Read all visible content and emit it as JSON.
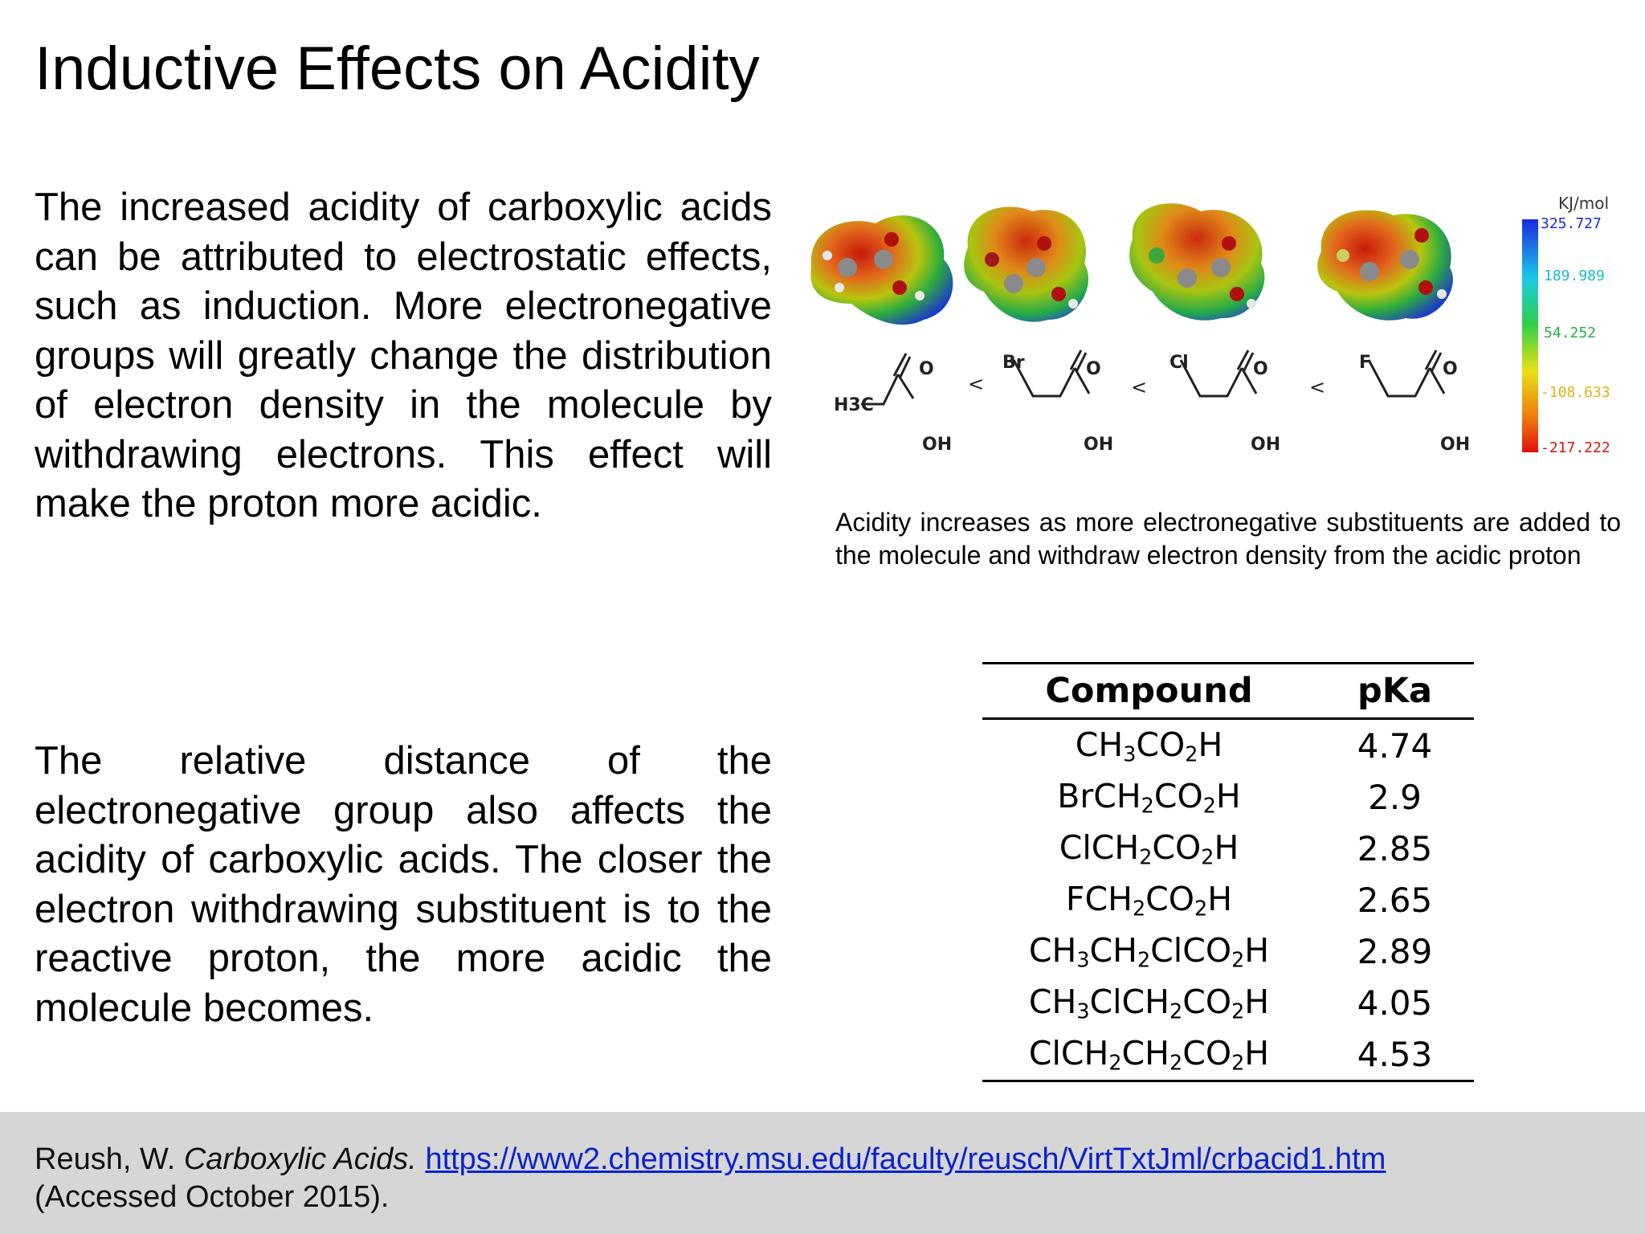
{
  "title": "Inductive Effects on Acidity",
  "paragraph1": "The increased acidity of carboxylic acids can be attributed to electrostatic effects, such as induction. More electronegative groups will greatly change the distribution of electron density in the molecule by withdrawing electrons. This effect will make the proton more acidic.",
  "paragraph2": "The relative distance of the electronegative group also affects the acidity of carboxylic acids. The closer the electron withdrawing substituent is to the reactive proton, the more acidic the molecule becomes.",
  "figure": {
    "legend_unit": "KJ/mol",
    "legend_values": [
      "325.727",
      "189.989",
      "54.252",
      "-108.633",
      "-217.222"
    ],
    "molecules": [
      {
        "substituent": "H3C",
        "group": "OH",
        "carbonyl": "O"
      },
      {
        "substituent": "Br",
        "group": "OH",
        "carbonyl": "O"
      },
      {
        "substituent": "Cl",
        "group": "OH",
        "carbonyl": "O"
      },
      {
        "substituent": "F",
        "group": "OH",
        "carbonyl": "O"
      }
    ],
    "comparator": "<",
    "caption": "Acidity increases as more electronegative substituents are added to the molecule and withdraw electron density from the acidic proton"
  },
  "table": {
    "headers": [
      "Compound",
      "pKa"
    ],
    "rows": [
      {
        "compound": "CH3CO2H",
        "pka": "4.74"
      },
      {
        "compound": "BrCH2CO2H",
        "pka": "2.9"
      },
      {
        "compound": "ClCH2CO2H",
        "pka": "2.85"
      },
      {
        "compound": "FCH2CO2H",
        "pka": "2.65"
      },
      {
        "compound": "CH3CH2ClCO2H",
        "pka": "2.89"
      },
      {
        "compound": "CH3ClCH2CO2H",
        "pka": "4.05"
      },
      {
        "compound": "ClCH2CH2CO2H",
        "pka": "4.53"
      }
    ]
  },
  "reference": {
    "author": "Reush, W.",
    "work": "Carboxylic Acids.",
    "url": "https://www2.chemistry.msu.edu/faculty/reusch/VirtTxtJml/crbacid1.htm",
    "accessed": "(Accessed October 2015)."
  }
}
